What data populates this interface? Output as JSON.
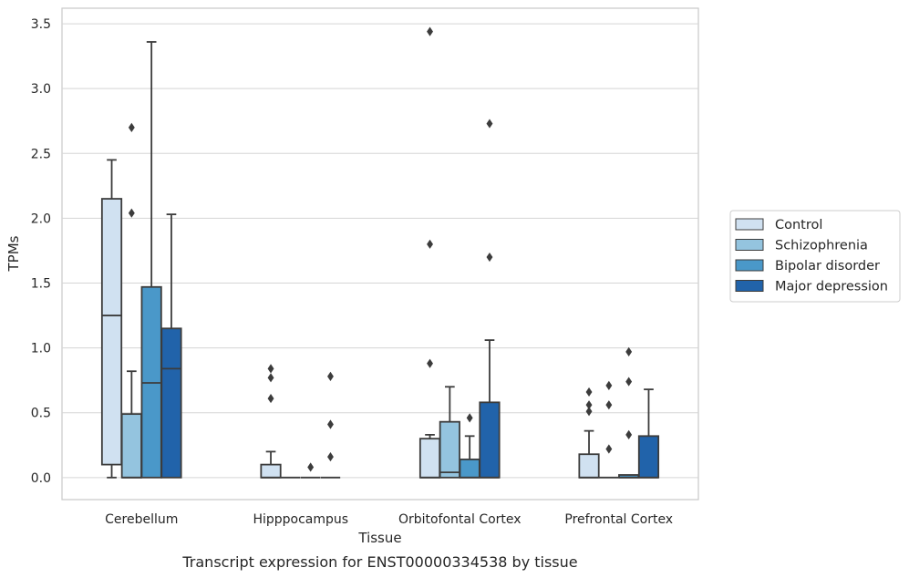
{
  "caption": "Transcript expression for ENST00000334538 by tissue",
  "chart_data": {
    "type": "box",
    "title": "",
    "xlabel": "Tissue",
    "ylabel": "TPMs",
    "ylim": [
      -0.17,
      3.62
    ],
    "yticks": [
      "0.0",
      "0.5",
      "1.0",
      "1.5",
      "2.0",
      "2.5",
      "3.0",
      "3.5"
    ],
    "ytick_values": [
      0,
      0.5,
      1.0,
      1.5,
      2.0,
      2.5,
      3.0,
      3.5
    ],
    "grid": true,
    "legend_position": "right",
    "categories": [
      "Cerebellum",
      "Hipppocampus",
      "Orbitofontal Cortex",
      "Prefrontal Cortex"
    ],
    "series": [
      {
        "name": "Control",
        "color": "#d0e1f1",
        "boxes": [
          {
            "whislo": 0.0,
            "q1": 0.1,
            "median": 1.25,
            "q3": 2.15,
            "whishi": 2.45,
            "fliers": []
          },
          {
            "whislo": 0.0,
            "q1": 0.0,
            "median": 0.0,
            "q3": 0.1,
            "whishi": 0.2,
            "fliers": [
              0.61,
              0.77,
              0.84
            ]
          },
          {
            "whislo": 0.0,
            "q1": 0.0,
            "median": 0.0,
            "q3": 0.3,
            "whishi": 0.33,
            "fliers": [
              0.88,
              1.8,
              3.44
            ]
          },
          {
            "whislo": 0.0,
            "q1": 0.0,
            "median": 0.0,
            "q3": 0.18,
            "whishi": 0.36,
            "fliers": [
              0.51,
              0.56,
              0.66
            ]
          }
        ]
      },
      {
        "name": "Schizophrenia",
        "color": "#94c4df",
        "boxes": [
          {
            "whislo": 0.0,
            "q1": 0.0,
            "median": 0.0,
            "q3": 0.49,
            "whishi": 0.82,
            "fliers": [
              2.04,
              2.7
            ]
          },
          {
            "whislo": 0.0,
            "q1": 0.0,
            "median": 0.0,
            "q3": 0.0,
            "whishi": 0.0,
            "fliers": []
          },
          {
            "whislo": 0.0,
            "q1": 0.0,
            "median": 0.04,
            "q3": 0.43,
            "whishi": 0.7,
            "fliers": []
          },
          {
            "whislo": 0.0,
            "q1": 0.0,
            "median": 0.0,
            "q3": 0.0,
            "whishi": 0.0,
            "fliers": [
              0.22,
              0.56,
              0.71
            ]
          }
        ]
      },
      {
        "name": "Bipolar disorder",
        "color": "#4a98c9",
        "boxes": [
          {
            "whislo": 0.0,
            "q1": 0.0,
            "median": 0.73,
            "q3": 1.47,
            "whishi": 3.36,
            "fliers": []
          },
          {
            "whislo": 0.0,
            "q1": 0.0,
            "median": 0.0,
            "q3": 0.0,
            "whishi": 0.0,
            "fliers": [
              0.08
            ]
          },
          {
            "whislo": 0.0,
            "q1": 0.0,
            "median": 0.0,
            "q3": 0.14,
            "whishi": 0.32,
            "fliers": [
              0.46
            ]
          },
          {
            "whislo": 0.0,
            "q1": 0.0,
            "median": 0.0,
            "q3": 0.02,
            "whishi": 0.02,
            "fliers": [
              0.33,
              0.74,
              0.97
            ]
          }
        ]
      },
      {
        "name": "Major depression",
        "color": "#2163aa",
        "boxes": [
          {
            "whislo": 0.0,
            "q1": 0.0,
            "median": 0.84,
            "q3": 1.15,
            "whishi": 2.03,
            "fliers": []
          },
          {
            "whislo": 0.0,
            "q1": 0.0,
            "median": 0.0,
            "q3": 0.0,
            "whishi": 0.0,
            "fliers": [
              0.16,
              0.41,
              0.78
            ]
          },
          {
            "whislo": 0.0,
            "q1": 0.0,
            "median": 0.0,
            "q3": 0.58,
            "whishi": 1.06,
            "fliers": [
              1.7,
              2.73
            ]
          },
          {
            "whislo": 0.0,
            "q1": 0.0,
            "median": 0.0,
            "q3": 0.32,
            "whishi": 0.68,
            "fliers": []
          }
        ]
      }
    ]
  }
}
